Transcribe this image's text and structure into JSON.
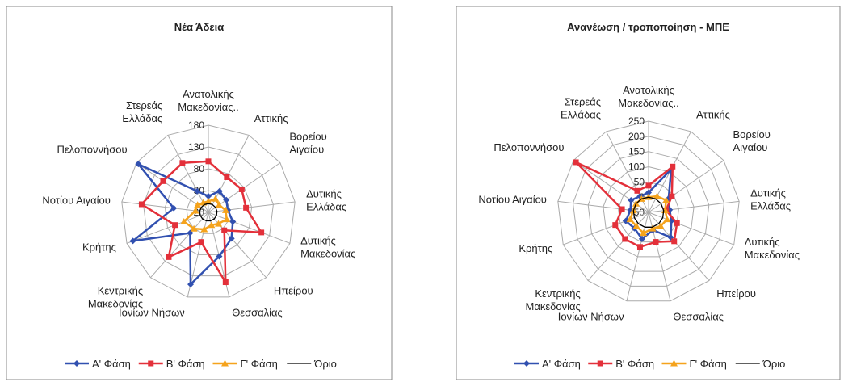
{
  "chart_data": [
    {
      "type": "radar",
      "title": "Νέα Άδεια",
      "categories": [
        "Ανατολικής\nΜακεδονίας..",
        "Αττικής",
        "Βορείου\nΑιγαίου",
        "Δυτικής\nΕλλάδας",
        "Δυτικής\nΜακεδονίας",
        "Ηπείρου",
        "Θεσσαλίας",
        "Ιονίων Νήσων",
        "Κεντρικής\nΜακεδονίας",
        "Κρήτης",
        "Νοτίου Αιγαίου",
        "Πελοποννήσου",
        "Στερεάς\nΕλλάδας"
      ],
      "ylim": [
        -20,
        180
      ],
      "yticks": [
        -20,
        30,
        80,
        130,
        180
      ],
      "grid": true,
      "series": [
        {
          "name": "Α' Φάση",
          "color": "#3150b0",
          "marker": "diamond",
          "values": [
            17,
            35,
            30,
            25,
            40,
            60,
            84,
            150,
            43,
            165,
            60,
            175,
            35
          ]
        },
        {
          "name": "Β' Φάση",
          "color": "#e3303a",
          "marker": "square",
          "values": [
            97,
            71,
            73,
            67,
            110,
            35,
            145,
            50,
            117,
            62,
            134,
            106,
            108
          ]
        },
        {
          "name": "Γ' Φάση",
          "color": "#f5a31c",
          "marker": "triangle",
          "values": [
            5,
            15,
            10,
            20,
            25,
            15,
            10,
            20,
            30,
            40,
            10,
            10,
            5
          ]
        },
        {
          "name": "Όριο",
          "color": "#000000",
          "marker": "none",
          "values": [
            0,
            0,
            0,
            0,
            0,
            0,
            0,
            0,
            0,
            0,
            0,
            0,
            0
          ]
        }
      ]
    },
    {
      "type": "radar",
      "title": "Ανανέωση / τροποποίηση - ΜΠΕ",
      "categories": [
        "Ανατολικής\nΜακεδονίας..",
        "Αττικής",
        "Βορείου\nΑιγαίου",
        "Δυτικής\nΕλλάδας",
        "Δυτικής\nΜακεδονίας",
        "Ηπείρου",
        "Θεσσαλίας",
        "Ιονίων Νήσων",
        "Κεντρικής\nΜακεδονίας",
        "Κρήτης",
        "Νοτίου Αιγαίου",
        "Πελοποννήσου",
        "Στερεάς\nΕλλάδας"
      ],
      "ylim": [
        -50,
        250
      ],
      "yticks": [
        -50,
        0,
        50,
        100,
        150,
        200,
        250
      ],
      "grid": true,
      "series": [
        {
          "name": "Α' Φάση",
          "color": "#3150b0",
          "marker": "diamond",
          "values": [
            15,
            110,
            30,
            20,
            30,
            60,
            10,
            40,
            20,
            30,
            10,
            20,
            10
          ]
        },
        {
          "name": "Β' Φάση",
          "color": "#e3303a",
          "marker": "square",
          "values": [
            38,
            120,
            43,
            8,
            50,
            77,
            50,
            67,
            67,
            67,
            38,
            240,
            30
          ]
        },
        {
          "name": "Γ' Φάση",
          "color": "#f5a31c",
          "marker": "triangle",
          "values": [
            0,
            10,
            20,
            5,
            15,
            10,
            5,
            20,
            10,
            15,
            0,
            0,
            0
          ]
        },
        {
          "name": "Όριο",
          "color": "#000000",
          "marker": "none",
          "values": [
            0,
            0,
            0,
            0,
            0,
            0,
            0,
            0,
            0,
            0,
            0,
            0,
            0
          ]
        }
      ]
    }
  ]
}
